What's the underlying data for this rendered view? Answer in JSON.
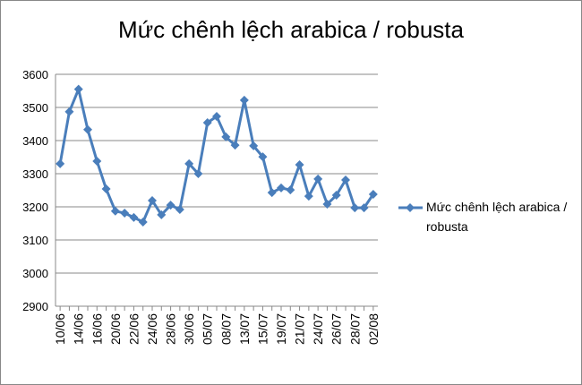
{
  "chart_data": {
    "type": "line",
    "title": "Mức chênh lệch arabica / robusta",
    "categories": [
      "10/06",
      null,
      "14/06",
      null,
      "16/06",
      null,
      "20/06",
      null,
      "22/06",
      null,
      "24/06",
      null,
      "28/06",
      null,
      "30/06",
      null,
      "05/07",
      null,
      "08/07",
      null,
      "13/07",
      null,
      "15/07",
      null,
      "19/07",
      null,
      "21/07",
      null,
      "24/07",
      null,
      "26/07",
      null,
      "28/07",
      null,
      "02/08"
    ],
    "series": [
      {
        "name": "Mức chênh lệch arabica / robusta",
        "color": "#4a7ebb",
        "values": [
          3330,
          3487,
          3555,
          3433,
          3338,
          3254,
          3187,
          3181,
          3168,
          3154,
          3219,
          3176,
          3205,
          3192,
          3330,
          3300,
          3454,
          3473,
          3411,
          3386,
          3522,
          3384,
          3351,
          3243,
          3257,
          3251,
          3327,
          3232,
          3284,
          3208,
          3235,
          3281,
          3197,
          3197,
          3238
        ]
      }
    ],
    "ylim": [
      2900,
      3600
    ],
    "yticks": [
      2900,
      3000,
      3100,
      3200,
      3300,
      3400,
      3500,
      3600
    ],
    "grid": true,
    "legend": "right"
  }
}
